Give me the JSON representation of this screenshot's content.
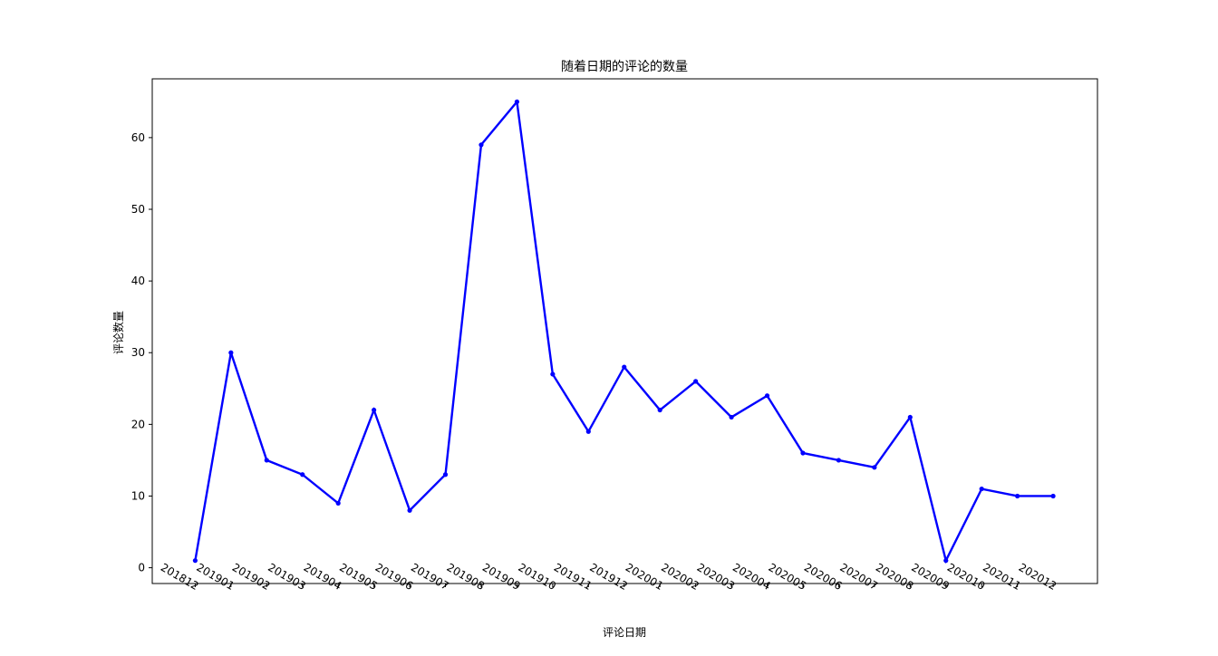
{
  "chart_data": {
    "type": "line",
    "title": "随着日期的评论的数量",
    "xlabel": "评论日期",
    "ylabel": "评论数量",
    "categories": [
      "201812",
      "201901",
      "201902",
      "201903",
      "201904",
      "201905",
      "201906",
      "201907",
      "201908",
      "201909",
      "201910",
      "201911",
      "201912",
      "202001",
      "202002",
      "202003",
      "202004",
      "202005",
      "202006",
      "202007",
      "202008",
      "202009",
      "202010",
      "202011",
      "202012"
    ],
    "series": [
      {
        "values": [
          1,
          30,
          15,
          13,
          9,
          22,
          8,
          13,
          59,
          65,
          27,
          19,
          28,
          22,
          26,
          21,
          24,
          16,
          15,
          14,
          21,
          1,
          11,
          10,
          10
        ],
        "color": "#0000ff",
        "marker": "circle"
      }
    ],
    "ylim": [
      -2.2,
      68.2
    ],
    "yticks": [
      0,
      10,
      20,
      30,
      40,
      50,
      60
    ],
    "grid": false,
    "legend": "none"
  }
}
